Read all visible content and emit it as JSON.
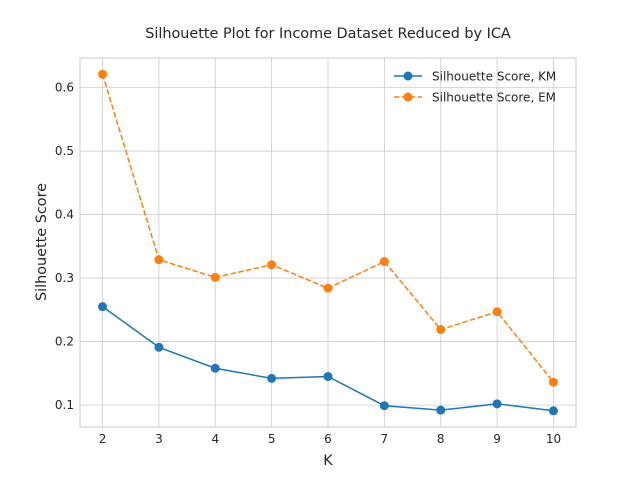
{
  "chart_data": {
    "type": "line",
    "title": "Silhouette Plot for Income Dataset Reduced by ICA",
    "xlabel": "K",
    "ylabel": "Silhouette Score",
    "x": [
      2,
      3,
      4,
      5,
      6,
      7,
      8,
      9,
      10
    ],
    "xlim": [
      1.6,
      10.4
    ],
    "ylim": [
      0.0655,
      0.6465
    ],
    "xticks": [
      "2",
      "3",
      "4",
      "5",
      "6",
      "7",
      "8",
      "9",
      "10"
    ],
    "yticks": [
      0.1,
      0.2,
      0.3,
      0.4,
      0.5,
      0.6
    ],
    "ytick_labels": [
      "0.1",
      "0.2",
      "0.3",
      "0.4",
      "0.5",
      "0.6"
    ],
    "grid": true,
    "legend_position": "top-right",
    "series": [
      {
        "name": "Silhouette Score, KM",
        "values": [
          0.255,
          0.191,
          0.158,
          0.142,
          0.145,
          0.099,
          0.092,
          0.102,
          0.091
        ],
        "color": "#1f77b4",
        "linestyle": "solid",
        "marker": "circle"
      },
      {
        "name": "Silhouette Score, EM",
        "values": [
          0.621,
          0.329,
          0.301,
          0.321,
          0.284,
          0.326,
          0.219,
          0.247,
          0.136
        ],
        "color": "#ff7f0e",
        "linestyle": "dashed",
        "marker": "circle"
      }
    ]
  }
}
